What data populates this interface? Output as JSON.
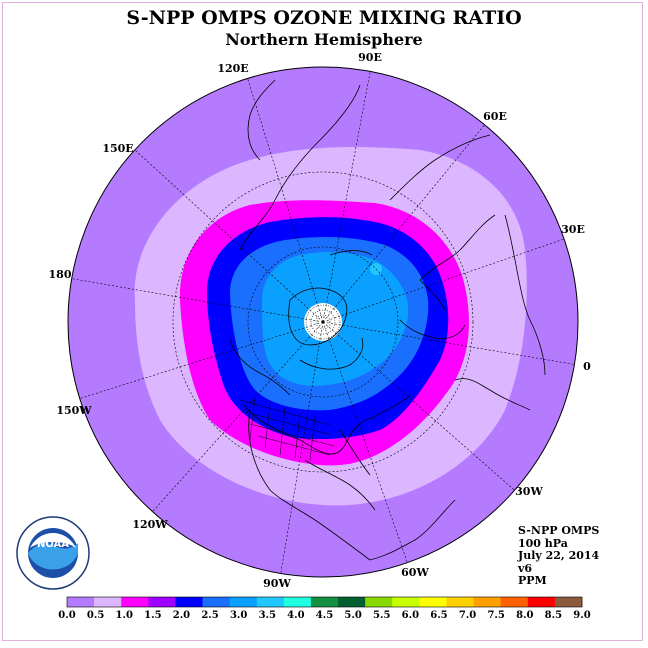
{
  "title": "S-NPP OMPS OZONE MIXING RATIO",
  "subtitle": "Northern Hemisphere",
  "longitude_labels": [
    "90E",
    "60E",
    "30E",
    "0",
    "30W",
    "60W",
    "90W",
    "120W",
    "150W",
    "180",
    "150E",
    "120E"
  ],
  "info": {
    "instrument": "S-NPP OMPS",
    "level": "100 hPa",
    "date": "July 22, 2014",
    "version": "v6",
    "units": "PPM"
  },
  "logo_text": "NOAA",
  "colorbar": {
    "ticks": [
      "0.0",
      "0.5",
      "1.0",
      "1.5",
      "2.0",
      "2.5",
      "3.0",
      "3.5",
      "4.0",
      "4.5",
      "5.0",
      "5.5",
      "6.0",
      "6.5",
      "7.0",
      "7.5",
      "8.0",
      "8.5",
      "9.0"
    ],
    "colors": [
      "#b57bff",
      "#dcb6ff",
      "#ff00ff",
      "#a000ff",
      "#0000ff",
      "#1a6fff",
      "#0aa0ff",
      "#20c8ff",
      "#20ffe0",
      "#109040",
      "#006030",
      "#88d800",
      "#c8ff00",
      "#ffff00",
      "#ffd000",
      "#ffa000",
      "#ff6000",
      "#ff0000",
      "#8b5a3c"
    ]
  },
  "colors": {
    "outer_ring": "#b57bff",
    "ring_05": "#dcb6ff",
    "ring_10": "#ff00ff",
    "ring_15": "#0000ff",
    "ring_20": "#1a6fff",
    "ring_25": "#0aa0ff"
  }
}
